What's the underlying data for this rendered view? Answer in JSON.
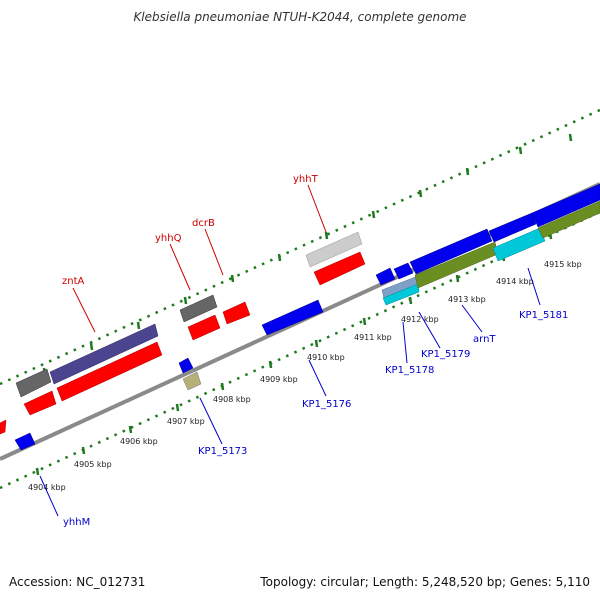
{
  "title": "Klebsiella pneumoniae NTUH-K2044, complete genome",
  "footer": {
    "accession": "Accession: NC_012731",
    "summary": "Topology: circular; Length: 5,248,520 bp; Genes: 5,110"
  },
  "colors": {
    "backbone": "#8a8a8a",
    "tick_ring": "#1f7a1f",
    "forward_gene_label": "#cc0000",
    "reverse_gene_label": "#0000cc",
    "cds_red": "#ff0000",
    "cds_blue": "#0000ee",
    "cds_purple": "#4b4590",
    "cds_gray": "#666666",
    "cds_lightgray": "#cccccc",
    "cds_olive": "#6b8e23",
    "cds_cyan": "#00c8d8",
    "cds_khaki": "#b5b07a"
  },
  "kbp_ticks": [
    {
      "label": "4904 kbp",
      "kbp": 4904
    },
    {
      "label": "4905 kbp",
      "kbp": 4905
    },
    {
      "label": "4906 kbp",
      "kbp": 4906
    },
    {
      "label": "4907 kbp",
      "kbp": 4907
    },
    {
      "label": "4908 kbp",
      "kbp": 4908
    },
    {
      "label": "4909 kbp",
      "kbp": 4909
    },
    {
      "label": "4910 kbp",
      "kbp": 4910
    },
    {
      "label": "4911 kbp",
      "kbp": 4911
    },
    {
      "label": "4912 kbp",
      "kbp": 4912
    },
    {
      "label": "4913 kbp",
      "kbp": 4913
    },
    {
      "label": "4914 kbp",
      "kbp": 4914
    },
    {
      "label": "4915 kbp",
      "kbp": 4915
    }
  ],
  "gene_labels": {
    "forward": [
      "zntA",
      "yhhQ",
      "dcrB",
      "yhhT"
    ],
    "reverse": [
      "yhhM",
      "KP1_5173",
      "KP1_5176",
      "KP1_5178",
      "KP1_5179",
      "arnT",
      "KP1_5181"
    ]
  }
}
